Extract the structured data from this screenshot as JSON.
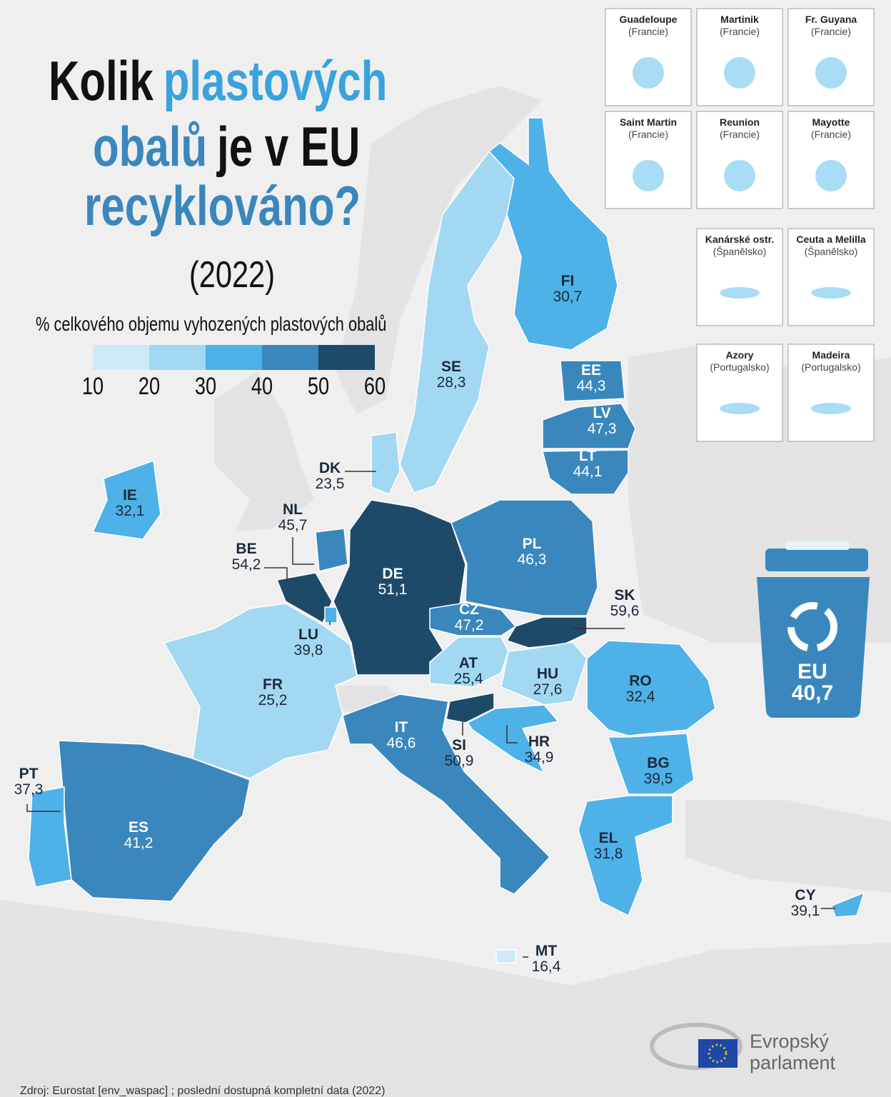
{
  "title": [
    [
      "Kolik",
      "plastových"
    ],
    [
      "obalů",
      "je v EU"
    ],
    [
      "recyklováno?"
    ]
  ],
  "subtitle": "(2022)",
  "legend": {
    "label": "% celkového objemu vyhozených plastových obalů",
    "ticks": [
      10,
      20,
      30,
      40,
      50,
      60
    ],
    "colors": [
      "#cdeaf8",
      "#a3d8f3",
      "#4eb1e8",
      "#3a87bd",
      "#1e4a6a"
    ]
  },
  "regions": [
    {
      "code": "FI",
      "value": 30.7,
      "value_label": "30,7"
    },
    {
      "code": "SE",
      "value": 28.3,
      "value_label": "28,3"
    },
    {
      "code": "EE",
      "value": 44.3,
      "value_label": "44,3"
    },
    {
      "code": "LV",
      "value": 47.3,
      "value_label": "47,3"
    },
    {
      "code": "LT",
      "value": 44.1,
      "value_label": "44,1"
    },
    {
      "code": "DK",
      "value": 23.5,
      "value_label": "23,5"
    },
    {
      "code": "IE",
      "value": 32.1,
      "value_label": "32,1"
    },
    {
      "code": "NL",
      "value": 45.7,
      "value_label": "45,7"
    },
    {
      "code": "BE",
      "value": 54.2,
      "value_label": "54,2"
    },
    {
      "code": "LU",
      "value": 39.8,
      "value_label": "39,8"
    },
    {
      "code": "DE",
      "value": 51.1,
      "value_label": "51,1"
    },
    {
      "code": "PL",
      "value": 46.3,
      "value_label": "46,3"
    },
    {
      "code": "CZ",
      "value": 47.2,
      "value_label": "47,2"
    },
    {
      "code": "SK",
      "value": 59.6,
      "value_label": "59,6"
    },
    {
      "code": "AT",
      "value": 25.4,
      "value_label": "25,4"
    },
    {
      "code": "HU",
      "value": 27.6,
      "value_label": "27,6"
    },
    {
      "code": "FR",
      "value": 25.2,
      "value_label": "25,2"
    },
    {
      "code": "IT",
      "value": 46.6,
      "value_label": "46,6"
    },
    {
      "code": "SI",
      "value": 50.9,
      "value_label": "50,9"
    },
    {
      "code": "HR",
      "value": 34.9,
      "value_label": "34,9"
    },
    {
      "code": "RO",
      "value": 32.4,
      "value_label": "32,4"
    },
    {
      "code": "BG",
      "value": 39.5,
      "value_label": "39,5"
    },
    {
      "code": "EL",
      "value": 31.8,
      "value_label": "31,8"
    },
    {
      "code": "ES",
      "value": 41.2,
      "value_label": "41,2"
    },
    {
      "code": "PT",
      "value": 37.3,
      "value_label": "37,3"
    },
    {
      "code": "CY",
      "value": 39.1,
      "value_label": "39,1"
    },
    {
      "code": "MT",
      "value": 16.4,
      "value_label": "16,4"
    }
  ],
  "eu": {
    "code": "EU",
    "value": 40.7,
    "value_label": "40,7"
  },
  "insets": [
    {
      "name": "Guadeloupe",
      "country": "(Francie)"
    },
    {
      "name": "Martinik",
      "country": "(Francie)"
    },
    {
      "name": "Fr. Guyana",
      "country": "(Francie)"
    },
    {
      "name": "Saint Martin",
      "country": "(Francie)"
    },
    {
      "name": "Reunion",
      "country": "(Francie)"
    },
    {
      "name": "Mayotte",
      "country": "(Francie)"
    },
    {
      "name": "Kanárské ostr.",
      "country": "(Španělsko)"
    },
    {
      "name": "Ceuta a Melilla",
      "country": "(Španělsko)"
    },
    {
      "name": "Azory",
      "country": "(Portugalsko)"
    },
    {
      "name": "Madeira",
      "country": "(Portugalsko)"
    }
  ],
  "logo": [
    "Evropský",
    "parlament"
  ],
  "source": "Zdroj: Eurostat [env_waspac] ; poslední dostupná kompletní data (2022)"
}
